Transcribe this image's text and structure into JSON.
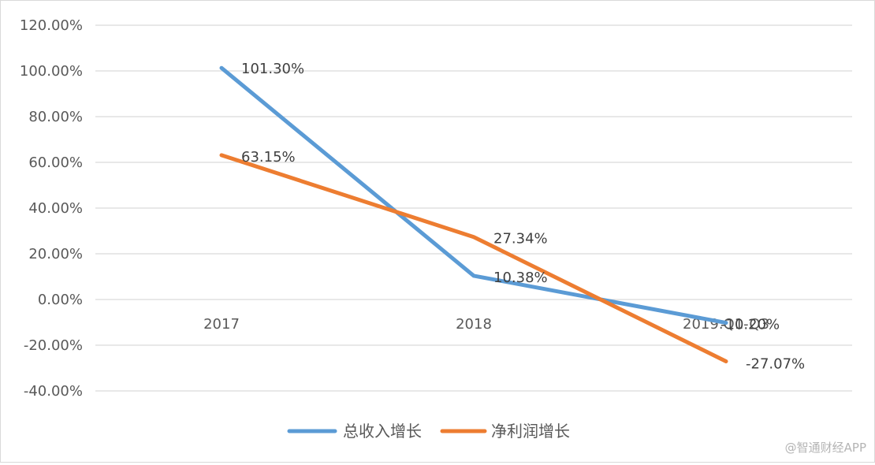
{
  "chart_data": {
    "type": "line",
    "categories": [
      "2017",
      "2018",
      "2019.Q1-Q3"
    ],
    "series": [
      {
        "name": "总收入增长",
        "values": [
          101.3,
          10.38,
          -10.2
        ],
        "labels": [
          "101.30%",
          "10.38%",
          "-10.20%"
        ],
        "color": "#5b9bd5"
      },
      {
        "name": "净利润增长",
        "values": [
          63.15,
          27.34,
          -27.07
        ],
        "labels": [
          "63.15%",
          "27.34%",
          "-27.07%"
        ],
        "color": "#ed7d31"
      }
    ],
    "ylim": [
      -40,
      120
    ],
    "yticks": [
      120,
      100,
      80,
      60,
      40,
      20,
      0,
      -20,
      -40
    ],
    "ytick_labels": [
      "120.00%",
      "100.00%",
      "80.00%",
      "60.00%",
      "40.00%",
      "20.00%",
      "0.00%",
      "-20.00%",
      "-40.00%"
    ],
    "grid": true,
    "legend_position": "bottom"
  },
  "watermark": "@智通财经APP"
}
